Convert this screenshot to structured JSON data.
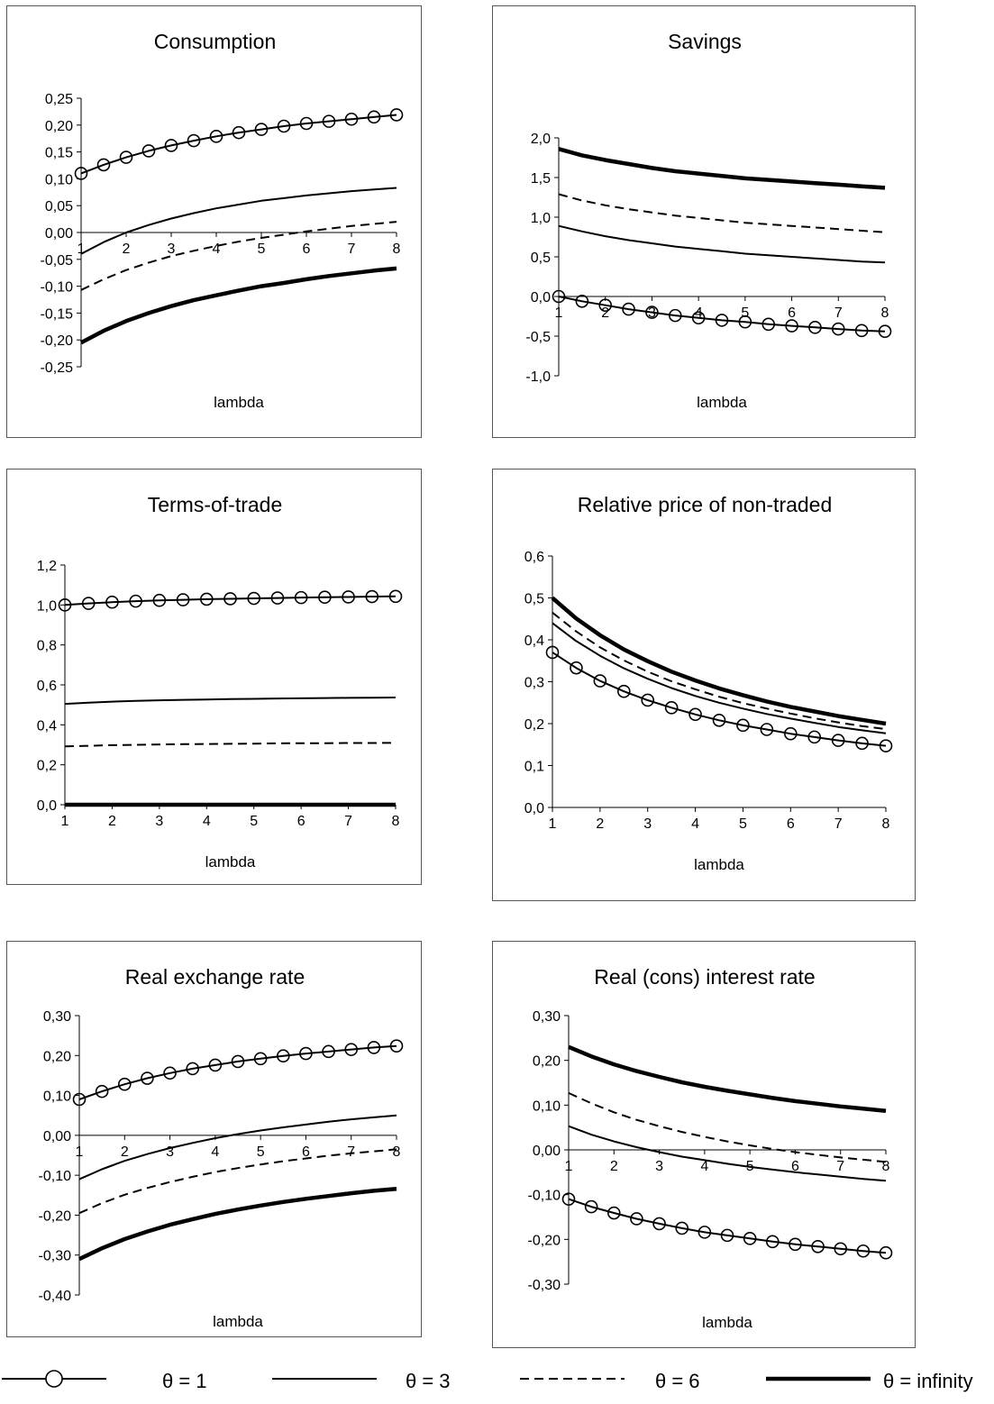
{
  "chart_data": [
    {
      "type": "line",
      "title": "Consumption",
      "xlabel": "lambda",
      "ylabel": "",
      "xlim": [
        1,
        8
      ],
      "ylim": [
        -0.25,
        0.25
      ],
      "xticks": [
        "1",
        "2",
        "3",
        "4",
        "5",
        "6",
        "7",
        "8"
      ],
      "yticks": [
        "0,25",
        "0,20",
        "0,15",
        "0,10",
        "0,05",
        "0,00",
        "-0,05",
        "-0,10",
        "-0,15",
        "-0,20",
        "-0,25"
      ],
      "x": [
        1,
        1.5,
        2,
        2.5,
        3,
        3.5,
        4,
        4.5,
        5,
        5.5,
        6,
        6.5,
        7,
        7.5,
        8
      ],
      "series": [
        {
          "key": "theta1",
          "values": [
            0.11,
            0.126,
            0.14,
            0.152,
            0.162,
            0.171,
            0.179,
            0.186,
            0.192,
            0.198,
            0.203,
            0.207,
            0.211,
            0.215,
            0.219
          ]
        },
        {
          "key": "theta3",
          "values": [
            -0.04,
            -0.018,
            0.0,
            0.014,
            0.026,
            0.036,
            0.045,
            0.052,
            0.059,
            0.064,
            0.069,
            0.073,
            0.077,
            0.08,
            0.083
          ]
        },
        {
          "key": "theta6",
          "values": [
            -0.107,
            -0.087,
            -0.07,
            -0.056,
            -0.044,
            -0.034,
            -0.025,
            -0.017,
            -0.01,
            -0.004,
            0.002,
            0.007,
            0.012,
            0.016,
            0.02
          ]
        },
        {
          "key": "thetainf",
          "values": [
            -0.205,
            -0.183,
            -0.165,
            -0.15,
            -0.137,
            -0.126,
            -0.117,
            -0.108,
            -0.1,
            -0.094,
            -0.087,
            -0.081,
            -0.076,
            -0.071,
            -0.067
          ]
        }
      ]
    },
    {
      "type": "line",
      "title": "Savings",
      "xlabel": "lambda",
      "ylabel": "",
      "xlim": [
        1,
        8
      ],
      "ylim": [
        -1.0,
        2.0
      ],
      "xticks": [
        "1",
        "2",
        "3",
        "4",
        "5",
        "6",
        "7",
        "8"
      ],
      "yticks": [
        "2,0",
        "1,5",
        "1,0",
        "0,5",
        "0,0",
        "-0,5",
        "-1,0"
      ],
      "x": [
        1,
        1.5,
        2,
        2.5,
        3,
        3.5,
        4,
        4.5,
        5,
        5.5,
        6,
        6.5,
        7,
        7.5,
        8
      ],
      "series": [
        {
          "key": "theta1",
          "values": [
            0.0,
            -0.06,
            -0.11,
            -0.16,
            -0.2,
            -0.24,
            -0.27,
            -0.3,
            -0.32,
            -0.35,
            -0.37,
            -0.39,
            -0.41,
            -0.43,
            -0.44
          ]
        },
        {
          "key": "theta3",
          "values": [
            0.89,
            0.82,
            0.76,
            0.71,
            0.67,
            0.63,
            0.6,
            0.57,
            0.54,
            0.52,
            0.5,
            0.48,
            0.46,
            0.44,
            0.43
          ]
        },
        {
          "key": "theta6",
          "values": [
            1.29,
            1.21,
            1.15,
            1.1,
            1.06,
            1.02,
            0.99,
            0.96,
            0.93,
            0.91,
            0.89,
            0.87,
            0.85,
            0.83,
            0.81
          ]
        },
        {
          "key": "thetainf",
          "values": [
            1.86,
            1.78,
            1.72,
            1.67,
            1.62,
            1.58,
            1.55,
            1.52,
            1.49,
            1.47,
            1.45,
            1.43,
            1.41,
            1.39,
            1.37
          ]
        }
      ]
    },
    {
      "type": "line",
      "title": "Terms-of-trade",
      "xlabel": "lambda",
      "ylabel": "",
      "xlim": [
        1,
        8
      ],
      "ylim": [
        0.0,
        1.2
      ],
      "xticks": [
        "1",
        "2",
        "3",
        "4",
        "5",
        "6",
        "7",
        "8"
      ],
      "yticks": [
        "1,2",
        "1,0",
        "0,8",
        "0,6",
        "0,4",
        "0,2",
        "0,0"
      ],
      "x": [
        1,
        1.5,
        2,
        2.5,
        3,
        3.5,
        4,
        4.5,
        5,
        5.5,
        6,
        6.5,
        7,
        7.5,
        8
      ],
      "series": [
        {
          "key": "theta1",
          "values": [
            1.0,
            1.008,
            1.014,
            1.019,
            1.023,
            1.026,
            1.029,
            1.031,
            1.033,
            1.035,
            1.037,
            1.039,
            1.04,
            1.042,
            1.043
          ]
        },
        {
          "key": "theta3",
          "values": [
            0.505,
            0.511,
            0.516,
            0.52,
            0.523,
            0.525,
            0.527,
            0.529,
            0.53,
            0.532,
            0.533,
            0.534,
            0.535,
            0.536,
            0.537
          ]
        },
        {
          "key": "theta6",
          "values": [
            0.292,
            0.295,
            0.298,
            0.3,
            0.302,
            0.303,
            0.304,
            0.305,
            0.306,
            0.307,
            0.308,
            0.308,
            0.309,
            0.309,
            0.31
          ]
        },
        {
          "key": "thetainf",
          "values": [
            0.0,
            0.0,
            0.0,
            0.0,
            0.0,
            0.0,
            0.0,
            0.0,
            0.0,
            0.0,
            0.0,
            0.0,
            0.0,
            0.0,
            0.0
          ]
        }
      ]
    },
    {
      "type": "line",
      "title": "Relative price of non-traded",
      "xlabel": "lambda",
      "ylabel": "",
      "xlim": [
        1,
        8
      ],
      "ylim": [
        0.0,
        0.6
      ],
      "xticks": [
        "1",
        "2",
        "3",
        "4",
        "5",
        "6",
        "7",
        "8"
      ],
      "yticks": [
        "0,6",
        "0,5",
        "0,4",
        "0,3",
        "0,2",
        "0,1",
        "0,0"
      ],
      "x": [
        1,
        1.5,
        2,
        2.5,
        3,
        3.5,
        4,
        4.5,
        5,
        5.5,
        6,
        6.5,
        7,
        7.5,
        8
      ],
      "series": [
        {
          "key": "theta1",
          "values": [
            0.37,
            0.333,
            0.302,
            0.277,
            0.256,
            0.238,
            0.222,
            0.208,
            0.196,
            0.186,
            0.176,
            0.168,
            0.16,
            0.153,
            0.147
          ]
        },
        {
          "key": "theta3",
          "values": [
            0.44,
            0.397,
            0.362,
            0.332,
            0.307,
            0.285,
            0.266,
            0.25,
            0.236,
            0.223,
            0.212,
            0.202,
            0.192,
            0.184,
            0.177
          ]
        },
        {
          "key": "theta6",
          "values": [
            0.465,
            0.42,
            0.382,
            0.351,
            0.324,
            0.301,
            0.282,
            0.264,
            0.249,
            0.236,
            0.224,
            0.213,
            0.203,
            0.194,
            0.187
          ]
        },
        {
          "key": "thetainf",
          "values": [
            0.5,
            0.451,
            0.411,
            0.377,
            0.349,
            0.324,
            0.303,
            0.284,
            0.268,
            0.253,
            0.24,
            0.229,
            0.218,
            0.209,
            0.2
          ]
        }
      ]
    },
    {
      "type": "line",
      "title": "Real exchange rate",
      "xlabel": "lambda",
      "ylabel": "",
      "xlim": [
        1,
        8
      ],
      "ylim": [
        -0.4,
        0.3
      ],
      "xticks": [
        "1",
        "2",
        "3",
        "4",
        "5",
        "6",
        "7",
        "8"
      ],
      "yticks": [
        "0,30",
        "0,20",
        "0,10",
        "0,00",
        "-0,10",
        "-0,20",
        "-0,30",
        "-0,40"
      ],
      "x": [
        1,
        1.5,
        2,
        2.5,
        3,
        3.5,
        4,
        4.5,
        5,
        5.5,
        6,
        6.5,
        7,
        7.5,
        8
      ],
      "series": [
        {
          "key": "theta1",
          "values": [
            0.09,
            0.11,
            0.128,
            0.143,
            0.156,
            0.167,
            0.176,
            0.185,
            0.192,
            0.199,
            0.205,
            0.21,
            0.215,
            0.22,
            0.224
          ]
        },
        {
          "key": "theta3",
          "values": [
            -0.11,
            -0.085,
            -0.064,
            -0.047,
            -0.032,
            -0.019,
            -0.007,
            0.003,
            0.012,
            0.02,
            0.027,
            0.034,
            0.04,
            0.045,
            0.05
          ]
        },
        {
          "key": "theta6",
          "values": [
            -0.195,
            -0.17,
            -0.149,
            -0.132,
            -0.117,
            -0.104,
            -0.092,
            -0.082,
            -0.073,
            -0.065,
            -0.058,
            -0.051,
            -0.045,
            -0.04,
            -0.035
          ]
        },
        {
          "key": "thetainf",
          "values": [
            -0.31,
            -0.283,
            -0.26,
            -0.241,
            -0.224,
            -0.21,
            -0.197,
            -0.186,
            -0.176,
            -0.167,
            -0.159,
            -0.152,
            -0.145,
            -0.139,
            -0.134
          ]
        }
      ]
    },
    {
      "type": "line",
      "title": "Real (cons) interest rate",
      "xlabel": "lambda",
      "ylabel": "",
      "xlim": [
        1,
        8
      ],
      "ylim": [
        -0.3,
        0.3
      ],
      "xticks": [
        "1",
        "2",
        "3",
        "4",
        "5",
        "6",
        "7",
        "8"
      ],
      "yticks": [
        "0,30",
        "0,20",
        "0,10",
        "0,00",
        "-0,10",
        "-0,20",
        "-0,30"
      ],
      "x": [
        1,
        1.5,
        2,
        2.5,
        3,
        3.5,
        4,
        4.5,
        5,
        5.5,
        6,
        6.5,
        7,
        7.5,
        8
      ],
      "series": [
        {
          "key": "theta1",
          "values": [
            -0.11,
            -0.127,
            -0.141,
            -0.154,
            -0.165,
            -0.175,
            -0.184,
            -0.191,
            -0.198,
            -0.205,
            -0.211,
            -0.216,
            -0.221,
            -0.226,
            -0.23
          ]
        },
        {
          "key": "theta3",
          "values": [
            0.053,
            0.034,
            0.019,
            0.006,
            -0.005,
            -0.015,
            -0.023,
            -0.031,
            -0.038,
            -0.044,
            -0.05,
            -0.055,
            -0.06,
            -0.065,
            -0.069
          ]
        },
        {
          "key": "theta6",
          "values": [
            0.127,
            0.104,
            0.084,
            0.067,
            0.053,
            0.04,
            0.029,
            0.019,
            0.01,
            0.002,
            -0.005,
            -0.011,
            -0.017,
            -0.022,
            -0.027
          ]
        },
        {
          "key": "thetainf",
          "values": [
            0.23,
            0.209,
            0.191,
            0.176,
            0.163,
            0.151,
            0.141,
            0.132,
            0.124,
            0.116,
            0.109,
            0.103,
            0.097,
            0.092,
            0.087
          ]
        }
      ]
    }
  ],
  "legend": {
    "placement": "bottom",
    "items": [
      {
        "key": "theta1",
        "label": "θ = 1"
      },
      {
        "key": "theta3",
        "label": "θ = 3"
      },
      {
        "key": "theta6",
        "label": "θ = 6"
      },
      {
        "key": "thetainf",
        "label": "θ = infinity"
      }
    ]
  }
}
